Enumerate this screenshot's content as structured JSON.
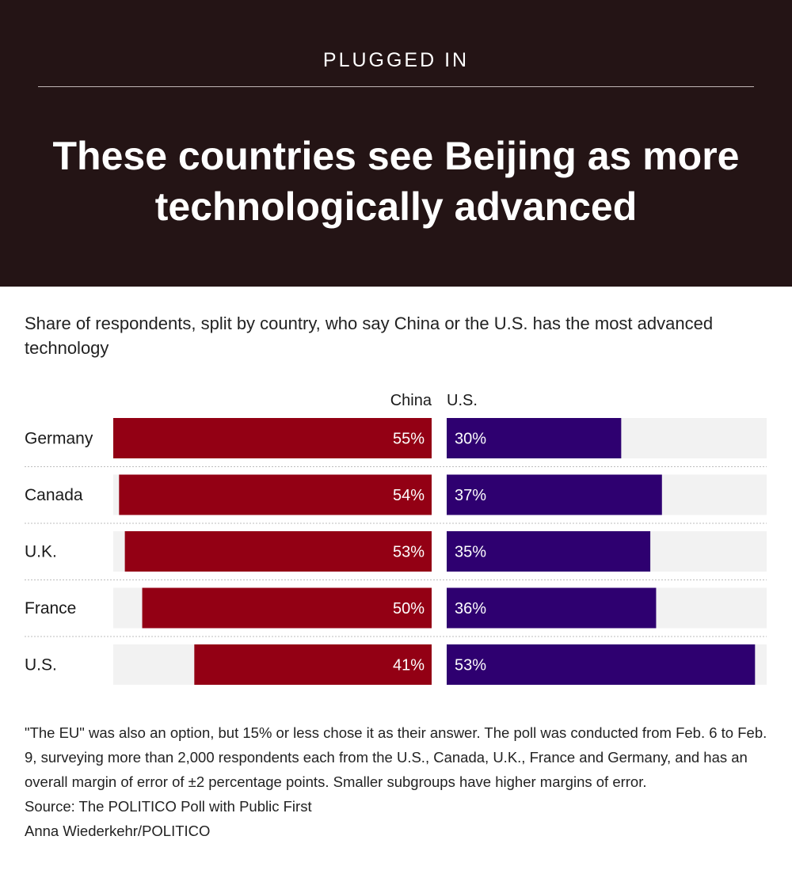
{
  "header": {
    "kicker": "PLUGGED IN",
    "title": "These countries see Beijing as more technologically advanced"
  },
  "subtitle": "Share of respondents, split by country, who say China or the U.S. has the most advanced technology",
  "chart_data": {
    "type": "bar",
    "categories": [
      "Germany",
      "Canada",
      "U.K.",
      "France",
      "U.S."
    ],
    "series": [
      {
        "name": "China",
        "values": [
          55,
          54,
          53,
          50,
          41
        ],
        "color": "#930014"
      },
      {
        "name": "U.S.",
        "values": [
          30,
          37,
          35,
          36,
          53
        ],
        "color": "#2e0070"
      }
    ],
    "value_suffix": "%",
    "xlim": [
      0,
      55
    ],
    "track_color": "#f2f2f2",
    "grid": false
  },
  "notes": {
    "note": "\"The EU\" was also an option, but 15% or less chose it as their answer. The poll was conducted from Feb. 6 to Feb. 9, surveying more than 2,000 respondents each from the U.S., Canada, U.K., France and Germany, and has an overall margin of error of ±2 percentage points. Smaller subgroups have higher margins of error.",
    "source": "Source: The POLITICO Poll with Public First",
    "credit": "Anna Wiederkehr/POLITICO"
  }
}
